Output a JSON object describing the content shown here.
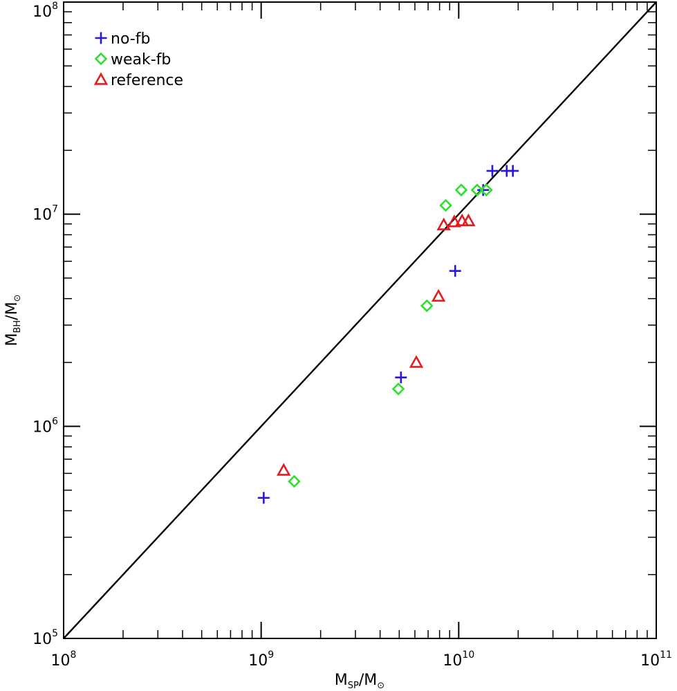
{
  "chart_data": {
    "type": "scatter",
    "x_scale": "log",
    "y_scale": "log",
    "xlim": [
      100000000.0,
      100000000000.0
    ],
    "ylim": [
      100000.0,
      100000000.0
    ],
    "xlabel": {
      "main": "M",
      "sub": "SP",
      "sep": "/M",
      "sym": "⊙"
    },
    "ylabel": {
      "main": "M",
      "sub": "BH",
      "sep": "/M",
      "sym": "⊙"
    },
    "x_ticks": [
      {
        "base": "10",
        "exp": "8",
        "value": 100000000.0
      },
      {
        "base": "10",
        "exp": "9",
        "value": 1000000000.0
      },
      {
        "base": "10",
        "exp": "10",
        "value": 10000000000.0
      },
      {
        "base": "10",
        "exp": "11",
        "value": 100000000000.0
      }
    ],
    "y_ticks": [
      {
        "base": "10",
        "exp": "5",
        "value": 100000.0
      },
      {
        "base": "10",
        "exp": "6",
        "value": 1000000.0
      },
      {
        "base": "10",
        "exp": "7",
        "value": 10000000.0
      },
      {
        "base": "10",
        "exp": "8",
        "value": 100000000.0
      }
    ],
    "reference_line": {
      "x": [
        100000000.0,
        100000000000.0
      ],
      "y": [
        100000.0,
        100000000.0
      ]
    },
    "legend_position": "top-left",
    "grid": false,
    "series": [
      {
        "name": "no-fb",
        "marker": "plus",
        "color": "#2b16d8",
        "x": [
          1030000000.0,
          5100000000.0,
          9600000000.0,
          13300000000.0,
          14800000000.0,
          17500000000.0,
          18800000000.0
        ],
        "y": [
          460000.0,
          1700000.0,
          5400000.0,
          13000000.0,
          16000000.0,
          16000000.0,
          16000000.0
        ]
      },
      {
        "name": "weak-fb",
        "marker": "diamond",
        "color": "#2ee02e",
        "x": [
          1470000000.0,
          4950000000.0,
          6900000000.0,
          8600000000.0,
          10300000000.0,
          12400000000.0,
          13800000000.0
        ],
        "y": [
          550000.0,
          1500000.0,
          3700000.0,
          11000000.0,
          13000000.0,
          13000000.0,
          13000000.0
        ]
      },
      {
        "name": "reference",
        "marker": "triangle",
        "color": "#e01e1e",
        "x": [
          1300000000.0,
          6100000000.0,
          7900000000.0,
          8400000000.0,
          9500000000.0,
          10400000000.0,
          11200000000.0
        ],
        "y": [
          620000.0,
          2000000.0,
          4100000.0,
          8900000.0,
          9200000.0,
          9300000.0,
          9300000.0
        ]
      }
    ]
  }
}
